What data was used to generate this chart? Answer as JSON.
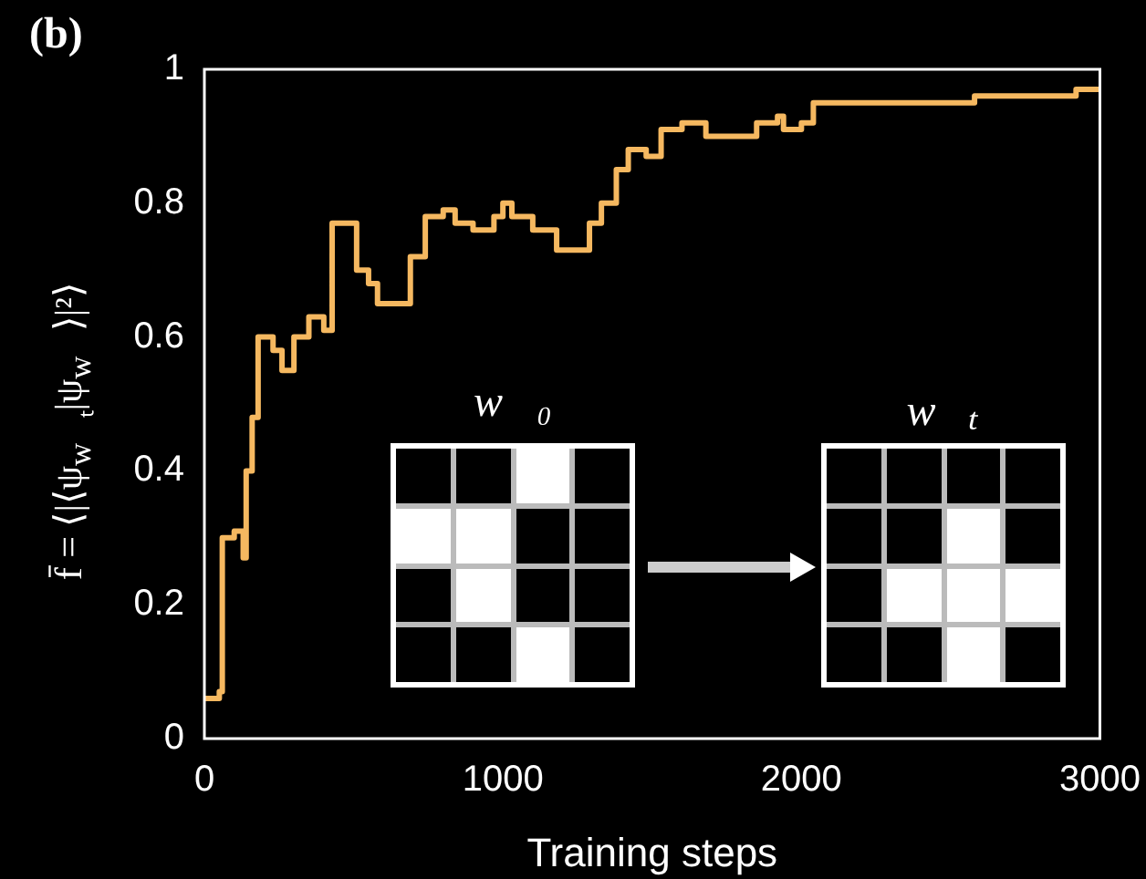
{
  "chart_data": {
    "type": "step",
    "title": "(b)",
    "xlabel": "Training steps",
    "ylabel": "f̄ = ⟨|⟨ψ$_{w⃗ₜ}$|ψ$_{w⃗}$⟩|²⟩",
    "annotations": [
      "w⃗₀",
      "w⃗ₜ"
    ],
    "x": [
      0,
      50,
      60,
      100,
      130,
      140,
      160,
      180,
      230,
      260,
      300,
      350,
      400,
      428,
      500,
      510,
      550,
      580,
      670,
      690,
      740,
      800,
      840,
      900,
      970,
      1000,
      1030,
      1100,
      1180,
      1270,
      1290,
      1330,
      1380,
      1420,
      1480,
      1530,
      1600,
      1680,
      1750,
      1850,
      1920,
      1940,
      2000,
      2040,
      2100,
      2300,
      2570,
      2580,
      2900,
      2920,
      3000
    ],
    "series": [
      {
        "color": "#f5b860",
        "values": [
          0.06,
          0.07,
          0.3,
          0.31,
          0.27,
          0.4,
          0.48,
          0.6,
          0.58,
          0.55,
          0.6,
          0.63,
          0.61,
          0.77,
          0.77,
          0.7,
          0.68,
          0.65,
          0.65,
          0.72,
          0.78,
          0.79,
          0.77,
          0.76,
          0.78,
          0.8,
          0.78,
          0.76,
          0.73,
          0.73,
          0.77,
          0.8,
          0.85,
          0.88,
          0.87,
          0.91,
          0.92,
          0.9,
          0.9,
          0.92,
          0.93,
          0.91,
          0.92,
          0.95,
          0.95,
          0.95,
          0.95,
          0.96,
          0.96,
          0.97,
          0.97
        ]
      }
    ],
    "xlim": [
      0,
      3000
    ],
    "xticks": [
      0,
      1000,
      2000,
      3000
    ],
    "ylim": [
      0,
      1
    ],
    "yticks": [
      0,
      0.2,
      0.4,
      0.6,
      0.8,
      1
    ],
    "grid": false,
    "legend": false
  }
}
